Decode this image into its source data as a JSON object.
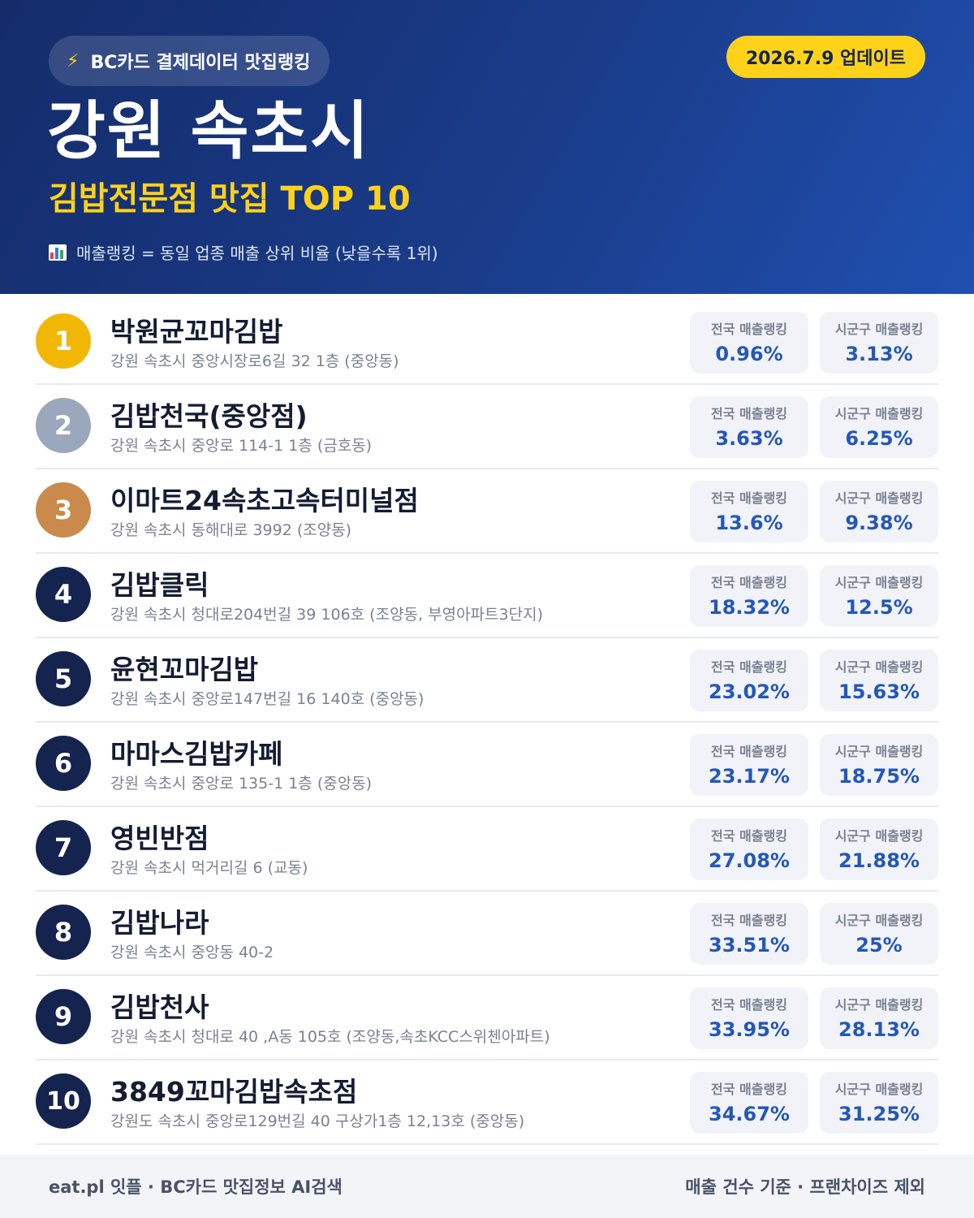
{
  "header": {
    "source_label": "BC카드 결제데이터 맛집랭킹",
    "update_label": "2026.7.9 업데이트",
    "title": "강원 속초시",
    "subtitle": "김밥전문점 맛집 TOP 10",
    "legend": "매출랭킹 = 동일 업종 매출 상위 비율 (낮을수록 1위)",
    "icons": {
      "source": "lightning-icon",
      "legend": "bar-chart-icon"
    },
    "colors": {
      "background": "#1a3c8a",
      "accent": "#ffd21a"
    }
  },
  "list": {
    "stat_labels": {
      "national": "전국 매출랭킹",
      "local": "시군구 매출랭킹"
    },
    "items": [
      {
        "rank": "1",
        "name": "박원균꼬마김밥",
        "address": "강원 속초시 중앙시장로6길 32 1층 (중앙동)",
        "national": "0.96%",
        "local": "3.13%"
      },
      {
        "rank": "2",
        "name": "김밥천국(중앙점)",
        "address": "강원 속초시 중앙로 114-1 1층 (금호동)",
        "national": "3.63%",
        "local": "6.25%"
      },
      {
        "rank": "3",
        "name": "이마트24속초고속터미널점",
        "address": "강원 속초시 동해대로 3992 (조양동)",
        "national": "13.6%",
        "local": "9.38%"
      },
      {
        "rank": "4",
        "name": "김밥클릭",
        "address": "강원 속초시 청대로204번길 39 106호 (조양동, 부영아파트3단지)",
        "national": "18.32%",
        "local": "12.5%"
      },
      {
        "rank": "5",
        "name": "윤현꼬마김밥",
        "address": "강원 속초시 중앙로147번길 16 140호 (중앙동)",
        "national": "23.02%",
        "local": "15.63%"
      },
      {
        "rank": "6",
        "name": "마마스김밥카페",
        "address": "강원 속초시 중앙로 135-1 1층 (중앙동)",
        "national": "23.17%",
        "local": "18.75%"
      },
      {
        "rank": "7",
        "name": "영빈반점",
        "address": "강원 속초시 먹거리길 6 (교동)",
        "national": "27.08%",
        "local": "21.88%"
      },
      {
        "rank": "8",
        "name": "김밥나라",
        "address": "강원 속초시 중앙동 40-2",
        "national": "33.51%",
        "local": "25%"
      },
      {
        "rank": "9",
        "name": "김밥천사",
        "address": "강원 속초시 청대로 40 ,A동 105호 (조양동,속초KCC스위첸아파트)",
        "national": "33.95%",
        "local": "28.13%"
      },
      {
        "rank": "10",
        "name": "3849꼬마김밥속초점",
        "address": "강원도 속초시 중앙로129번길 40 구상가1층 12,13호 (중앙동)",
        "national": "34.67%",
        "local": "31.25%"
      }
    ]
  },
  "footer": {
    "left": "eat.pl 잇플 · BC카드 맛집정보 AI검색",
    "right": "매출 건수 기준 · 프랜차이즈 제외"
  }
}
